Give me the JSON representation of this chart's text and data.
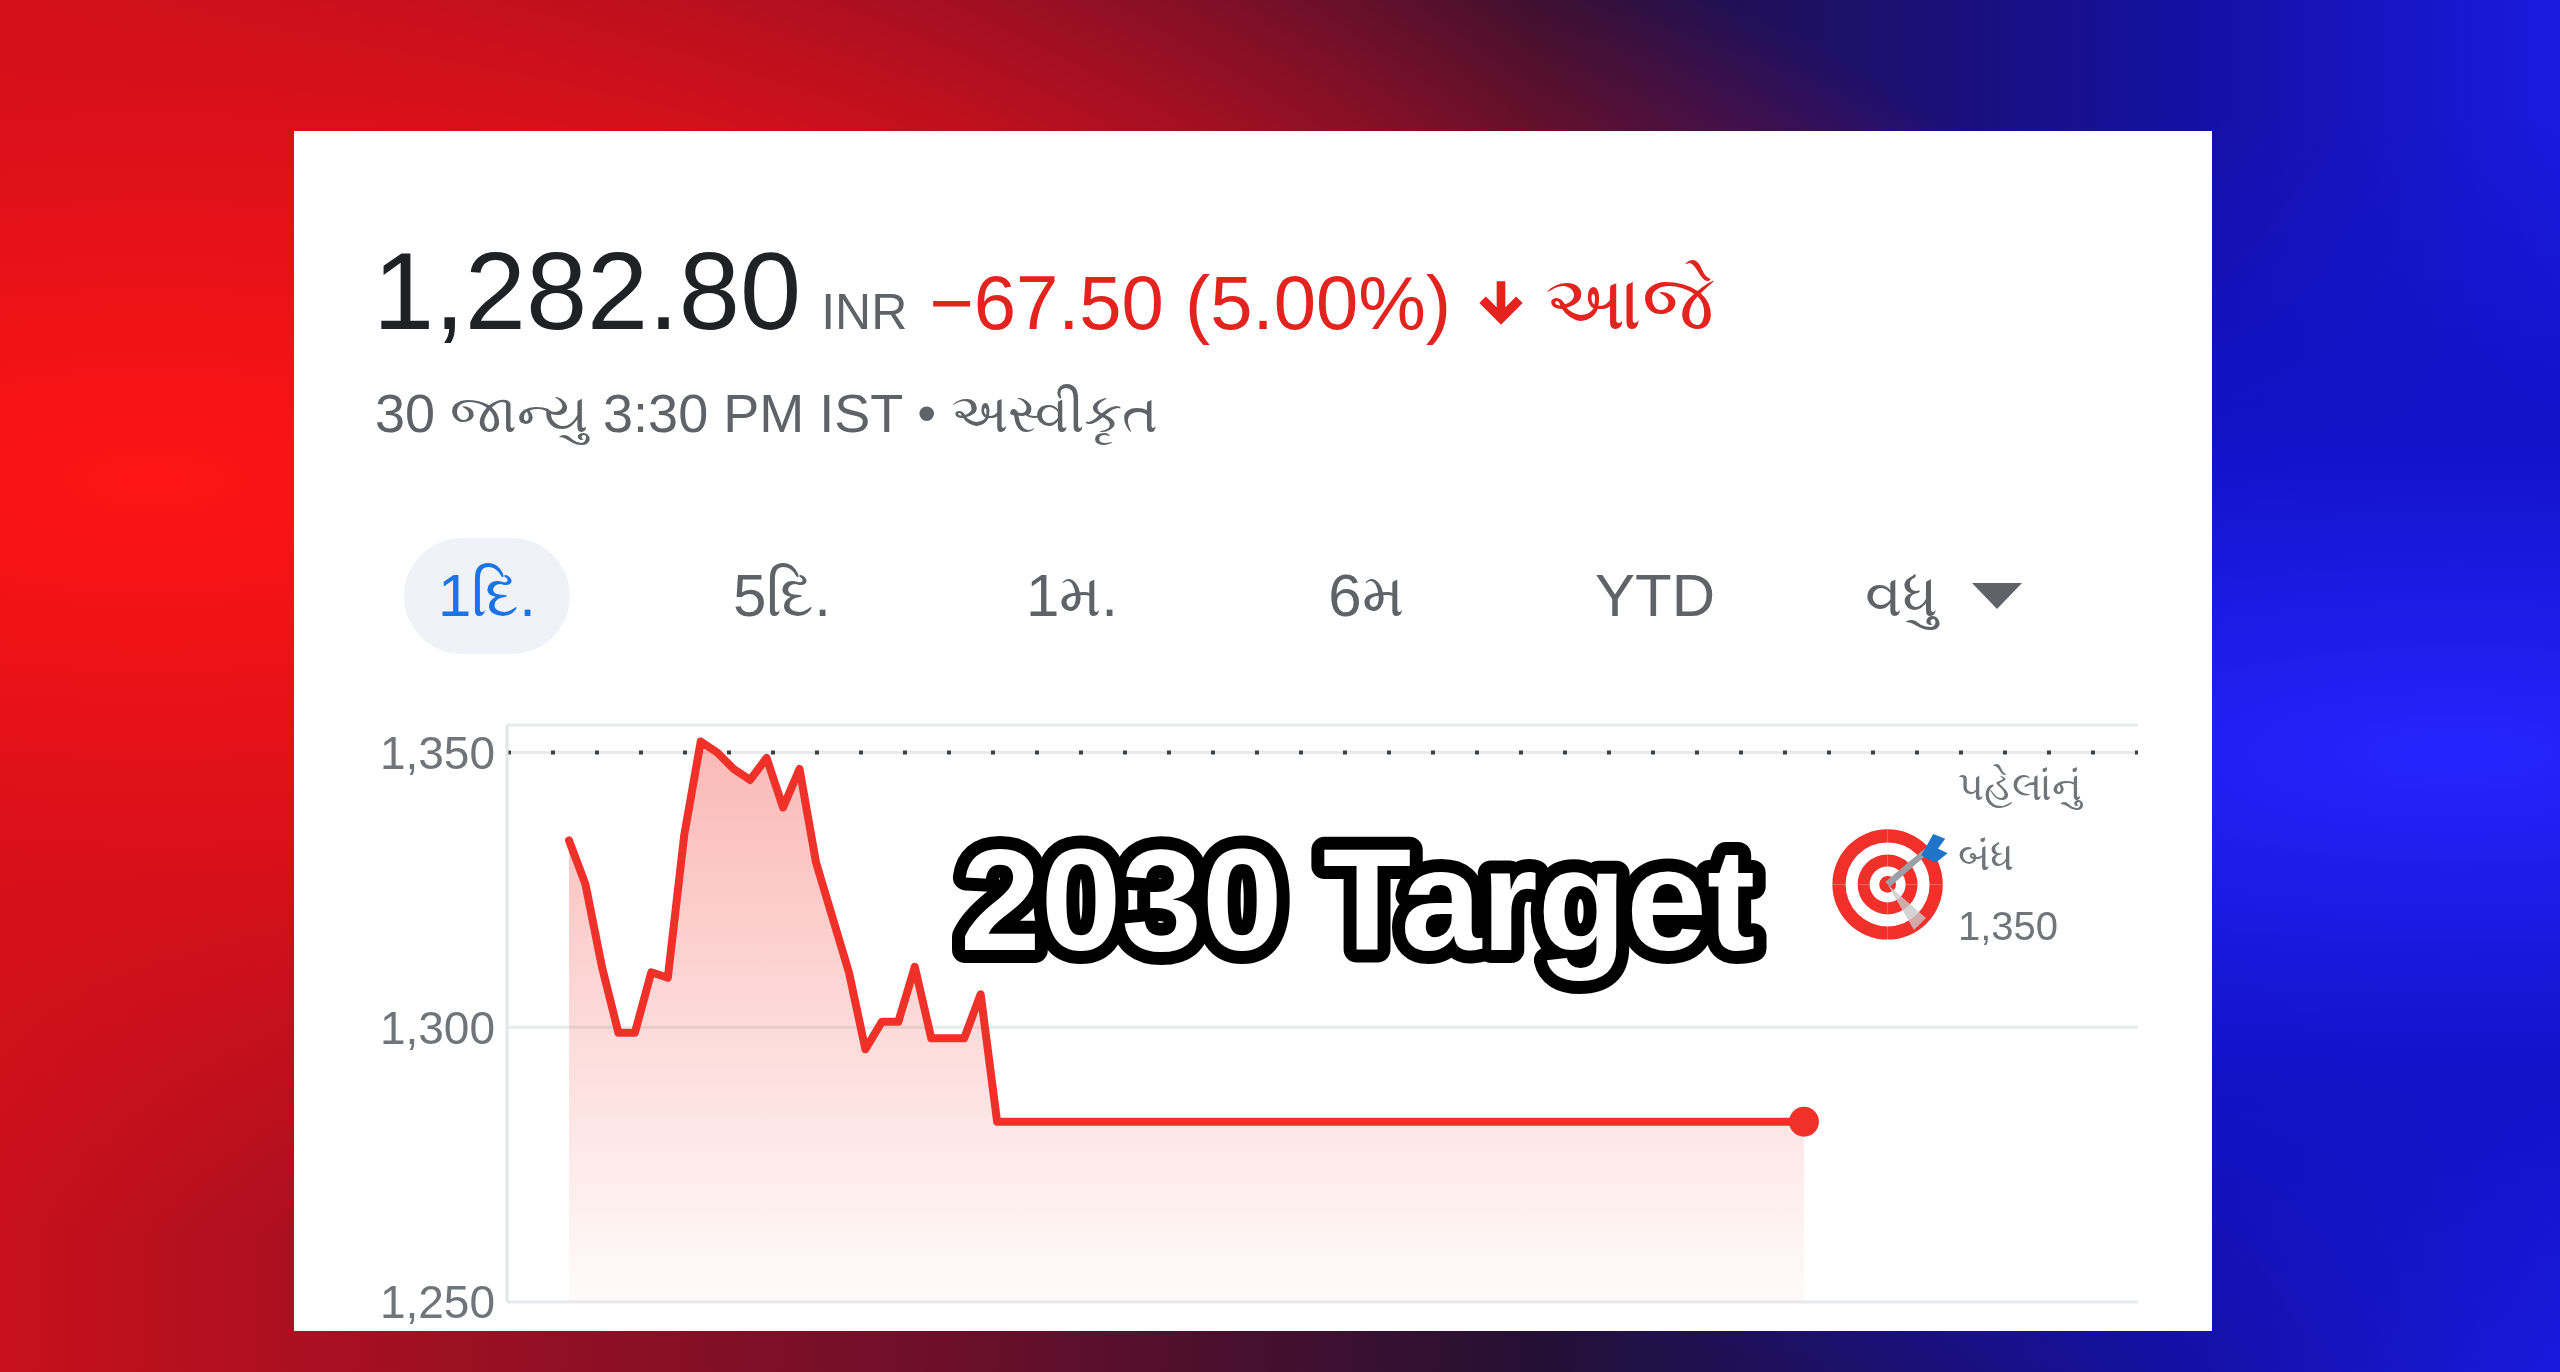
{
  "chart_data": {
    "type": "area",
    "title": "1,282.80",
    "subtitle": "30 જાન્યુ 3:30 PM IST • અસ્વીકૃત",
    "annotations": [
      "INR",
      "−67.50 (5.00%)",
      "આજે",
      "1દિ.",
      "5દિ.",
      "1મ.",
      "6મ",
      "YTD",
      "વધુ",
      "2030 Target"
    ],
    "categories": [
      null,
      null,
      null,
      null,
      null,
      null,
      null,
      null,
      null,
      null,
      null,
      null,
      null,
      null,
      null,
      null,
      null,
      null,
      null,
      null,
      null,
      null,
      null,
      null,
      null,
      null,
      null,
      null,
      null,
      null,
      null,
      null,
      null,
      null,
      null,
      null,
      null,
      null,
      null,
      null,
      null,
      null,
      null,
      null,
      null,
      null,
      null,
      null,
      null,
      null,
      null,
      null,
      null,
      null,
      null,
      null,
      null,
      null,
      null,
      null,
      null,
      null,
      null,
      null,
      null,
      null,
      null,
      null,
      null,
      null,
      null,
      null,
      null,
      null,
      null,
      null
    ],
    "series": [
      {
        "color": "#f0312a",
        "values": [
          1334,
          1326,
          1311,
          1299,
          1299,
          1310,
          1309,
          1335,
          1352,
          1350,
          1347,
          1345,
          1349,
          1340,
          1347,
          1330,
          1320,
          1310,
          1296,
          1301,
          1301,
          1311,
          1298,
          1298,
          1298,
          1306,
          1282.8,
          1282.8,
          1282.8,
          1282.8,
          1282.8,
          1282.8,
          1282.8,
          1282.8,
          1282.8,
          1282.8,
          1282.8,
          1282.8,
          1282.8,
          1282.8,
          1282.8,
          1282.8,
          1282.8,
          1282.8,
          1282.8,
          1282.8,
          1282.8,
          1282.8,
          1282.8,
          1282.8,
          1282.8,
          1282.8,
          1282.8,
          1282.8,
          1282.8,
          1282.8,
          1282.8,
          1282.8,
          1282.8,
          1282.8,
          1282.8,
          1282.8,
          1282.8,
          1282.8,
          1282.8,
          1282.8,
          1282.8,
          1282.8,
          1282.8,
          1282.8,
          1282.8,
          1282.8,
          1282.8,
          1282.8,
          1282.8,
          1282.8
        ]
      },
      {
        "type": "scatter",
        "marker": "circle",
        "color": "#f0312a",
        "values": [
          null,
          null,
          null,
          null,
          null,
          null,
          null,
          null,
          null,
          null,
          null,
          null,
          null,
          null,
          null,
          null,
          null,
          null,
          null,
          null,
          null,
          null,
          null,
          null,
          null,
          null,
          null,
          null,
          null,
          null,
          null,
          null,
          null,
          null,
          null,
          null,
          null,
          null,
          null,
          null,
          null,
          null,
          null,
          null,
          null,
          null,
          null,
          null,
          null,
          null,
          null,
          null,
          null,
          null,
          null,
          null,
          null,
          null,
          null,
          null,
          null,
          null,
          null,
          null,
          null,
          null,
          null,
          null,
          null,
          null,
          null,
          null,
          null,
          null,
          null,
          1282.8
        ]
      }
    ],
    "ylim": [
      1250,
      1355
    ],
    "yticks": [
      {
        "value": 1250,
        "label": "1,250"
      },
      {
        "value": 1300,
        "label": "1,300"
      },
      {
        "value": 1350,
        "label": "1,350"
      }
    ],
    "grid": "y",
    "ref_lines": [
      {
        "axis": "y",
        "value": 1350,
        "label": "પહેલાંનું બંધ 1,350",
        "color": "#3c4043",
        "line_style": "dotted"
      }
    ]
  }
}
